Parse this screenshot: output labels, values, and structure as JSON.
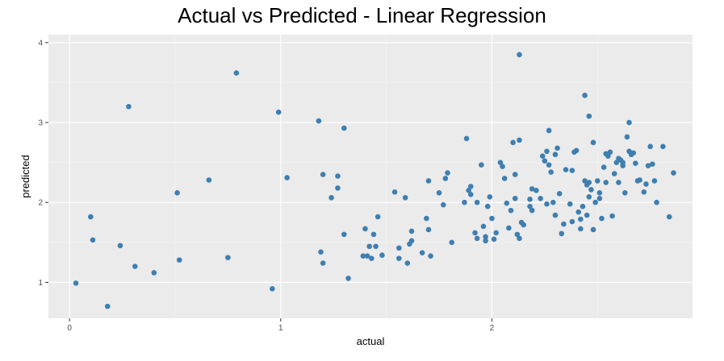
{
  "chart_data": {
    "type": "scatter",
    "title": "Actual vs Predicted - Linear Regression",
    "xlabel": "actual",
    "ylabel": "predicted",
    "xlim": [
      -0.1,
      2.95
    ],
    "ylim": [
      0.55,
      4.1
    ],
    "x_ticks": [
      {
        "value": 0,
        "label": "0"
      },
      {
        "value": 1,
        "label": "1"
      },
      {
        "value": 2,
        "label": "2"
      }
    ],
    "y_ticks": [
      {
        "value": 1,
        "label": "1"
      },
      {
        "value": 2,
        "label": "2"
      },
      {
        "value": 3,
        "label": "3"
      },
      {
        "value": 4,
        "label": "4"
      }
    ],
    "grid": true,
    "point_color": "#3f7fb0",
    "panel_background": "#ebebeb",
    "points": [
      [
        0.03,
        0.99
      ],
      [
        0.1,
        1.82
      ],
      [
        0.11,
        1.53
      ],
      [
        0.18,
        0.7
      ],
      [
        0.24,
        1.46
      ],
      [
        0.28,
        3.2
      ],
      [
        0.31,
        1.2
      ],
      [
        0.4,
        1.12
      ],
      [
        0.51,
        2.12
      ],
      [
        0.52,
        1.28
      ],
      [
        0.66,
        2.28
      ],
      [
        0.75,
        1.31
      ],
      [
        0.79,
        3.62
      ],
      [
        0.96,
        0.92
      ],
      [
        0.99,
        3.13
      ],
      [
        1.03,
        2.31
      ],
      [
        1.18,
        3.02
      ],
      [
        1.19,
        1.38
      ],
      [
        1.2,
        2.35
      ],
      [
        1.2,
        1.24
      ],
      [
        1.24,
        2.06
      ],
      [
        1.27,
        2.33
      ],
      [
        1.27,
        2.18
      ],
      [
        1.3,
        1.6
      ],
      [
        1.3,
        2.93
      ],
      [
        1.32,
        1.05
      ],
      [
        1.39,
        1.33
      ],
      [
        1.4,
        1.67
      ],
      [
        1.41,
        1.33
      ],
      [
        1.42,
        1.45
      ],
      [
        1.43,
        1.3
      ],
      [
        1.44,
        1.6
      ],
      [
        1.45,
        1.45
      ],
      [
        1.46,
        1.82
      ],
      [
        1.48,
        1.34
      ],
      [
        1.54,
        2.13
      ],
      [
        1.56,
        1.43
      ],
      [
        1.56,
        1.3
      ],
      [
        1.59,
        2.06
      ],
      [
        1.6,
        1.24
      ],
      [
        1.61,
        1.48
      ],
      [
        1.62,
        1.52
      ],
      [
        1.62,
        1.64
      ],
      [
        1.67,
        1.37
      ],
      [
        1.69,
        1.8
      ],
      [
        1.7,
        2.27
      ],
      [
        1.7,
        1.66
      ],
      [
        1.71,
        1.33
      ],
      [
        1.75,
        2.12
      ],
      [
        1.77,
        1.97
      ],
      [
        1.78,
        2.3
      ],
      [
        1.79,
        2.37
      ],
      [
        1.81,
        1.5
      ],
      [
        1.87,
        2.0
      ],
      [
        1.88,
        2.8
      ],
      [
        1.89,
        2.15
      ],
      [
        1.9,
        2.2
      ],
      [
        1.9,
        2.1
      ],
      [
        1.92,
        1.62
      ],
      [
        1.93,
        2.0
      ],
      [
        1.93,
        1.55
      ],
      [
        1.95,
        2.47
      ],
      [
        1.96,
        1.7
      ],
      [
        1.97,
        1.57
      ],
      [
        1.97,
        1.52
      ],
      [
        1.98,
        1.95
      ],
      [
        1.99,
        2.07
      ],
      [
        2.0,
        1.8
      ],
      [
        2.01,
        1.54
      ],
      [
        2.02,
        1.62
      ],
      [
        2.04,
        2.5
      ],
      [
        2.05,
        2.45
      ],
      [
        2.06,
        2.3
      ],
      [
        2.07,
        1.99
      ],
      [
        2.08,
        1.68
      ],
      [
        2.09,
        1.9
      ],
      [
        2.1,
        2.75
      ],
      [
        2.11,
        2.35
      ],
      [
        2.11,
        2.05
      ],
      [
        2.12,
        1.6
      ],
      [
        2.13,
        3.85
      ],
      [
        2.13,
        2.78
      ],
      [
        2.13,
        1.55
      ],
      [
        2.14,
        1.75
      ],
      [
        2.15,
        1.72
      ],
      [
        2.18,
        1.95
      ],
      [
        2.18,
        2.04
      ],
      [
        2.19,
        2.17
      ],
      [
        2.19,
        1.9
      ],
      [
        2.21,
        2.15
      ],
      [
        2.23,
        2.05
      ],
      [
        2.24,
        2.58
      ],
      [
        2.25,
        2.52
      ],
      [
        2.26,
        1.98
      ],
      [
        2.26,
        2.64
      ],
      [
        2.27,
        2.47
      ],
      [
        2.27,
        2.9
      ],
      [
        2.28,
        2.38
      ],
      [
        2.29,
        2.0
      ],
      [
        2.3,
        1.84
      ],
      [
        2.3,
        2.6
      ],
      [
        2.31,
        2.68
      ],
      [
        2.32,
        2.11
      ],
      [
        2.33,
        1.61
      ],
      [
        2.34,
        1.73
      ],
      [
        2.35,
        2.41
      ],
      [
        2.37,
        1.98
      ],
      [
        2.38,
        2.4
      ],
      [
        2.38,
        1.76
      ],
      [
        2.39,
        2.63
      ],
      [
        2.4,
        2.65
      ],
      [
        2.41,
        1.88
      ],
      [
        2.42,
        1.79
      ],
      [
        2.42,
        1.67
      ],
      [
        2.43,
        1.95
      ],
      [
        2.44,
        2.27
      ],
      [
        2.44,
        3.34
      ],
      [
        2.45,
        1.84
      ],
      [
        2.45,
        2.22
      ],
      [
        2.46,
        2.07
      ],
      [
        2.46,
        2.25
      ],
      [
        2.46,
        3.08
      ],
      [
        2.47,
        2.16
      ],
      [
        2.48,
        1.66
      ],
      [
        2.48,
        2.75
      ],
      [
        2.49,
        2.0
      ],
      [
        2.5,
        2.27
      ],
      [
        2.51,
        2.12
      ],
      [
        2.51,
        2.05
      ],
      [
        2.52,
        1.8
      ],
      [
        2.53,
        2.44
      ],
      [
        2.54,
        2.25
      ],
      [
        2.54,
        2.61
      ],
      [
        2.55,
        2.58
      ],
      [
        2.56,
        2.63
      ],
      [
        2.57,
        1.83
      ],
      [
        2.58,
        2.36
      ],
      [
        2.59,
        2.5
      ],
      [
        2.6,
        2.55
      ],
      [
        2.6,
        2.25
      ],
      [
        2.61,
        2.53
      ],
      [
        2.62,
        2.46
      ],
      [
        2.62,
        2.5
      ],
      [
        2.63,
        2.12
      ],
      [
        2.64,
        2.82
      ],
      [
        2.65,
        2.64
      ],
      [
        2.65,
        3.0
      ],
      [
        2.66,
        2.6
      ],
      [
        2.67,
        2.62
      ],
      [
        2.68,
        2.49
      ],
      [
        2.69,
        2.27
      ],
      [
        2.7,
        2.28
      ],
      [
        2.72,
        2.13
      ],
      [
        2.73,
        2.23
      ],
      [
        2.74,
        2.46
      ],
      [
        2.75,
        2.7
      ],
      [
        2.76,
        2.48
      ],
      [
        2.77,
        2.27
      ],
      [
        2.78,
        2.0
      ],
      [
        2.81,
        2.7
      ],
      [
        2.84,
        1.82
      ],
      [
        2.86,
        2.37
      ]
    ]
  }
}
